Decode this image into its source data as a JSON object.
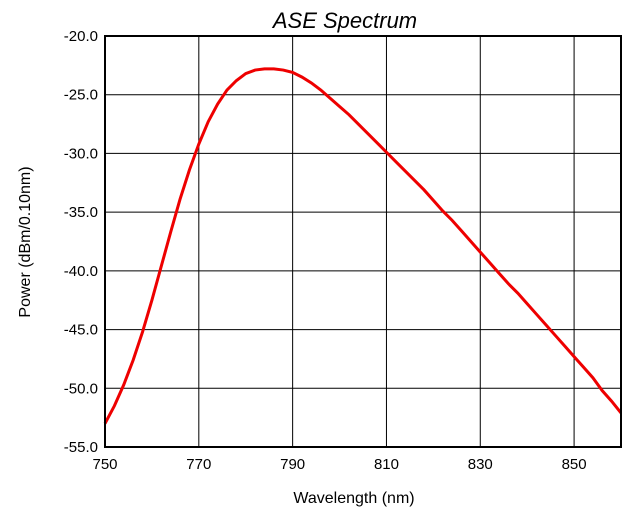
{
  "chart_data": {
    "type": "line",
    "title": "ASE Spectrum",
    "xlabel": "Wavelength (nm)",
    "ylabel": "Power (dBm/0.10nm)",
    "xlim": [
      750,
      860
    ],
    "ylim": [
      -55.0,
      -20.0
    ],
    "x_ticks": [
      750,
      770,
      790,
      810,
      830,
      850
    ],
    "x_tick_labels": [
      "750",
      "770",
      "790",
      "810",
      "830",
      "850"
    ],
    "y_ticks": [
      -20.0,
      -25.0,
      -30.0,
      -35.0,
      -40.0,
      -45.0,
      -50.0,
      -55.0
    ],
    "y_tick_labels": [
      "-20.0",
      "-25.0",
      "-30.0",
      "-35.0",
      "-40.0",
      "-45.0",
      "-50.0",
      "-55.0"
    ],
    "grid": true,
    "series": [
      {
        "color": "#ee0000",
        "x": [
          750,
          752,
          754,
          756,
          758,
          760,
          762,
          764,
          766,
          768,
          770,
          772,
          774,
          776,
          778,
          780,
          782,
          784,
          786,
          788,
          790,
          792,
          794,
          796,
          798,
          800,
          802,
          804,
          806,
          808,
          810,
          812,
          814,
          816,
          818,
          820,
          822,
          824,
          826,
          828,
          830,
          832,
          834,
          836,
          838,
          840,
          842,
          844,
          846,
          848,
          850,
          852,
          854,
          856,
          858,
          860
        ],
        "y": [
          -53.0,
          -51.5,
          -49.7,
          -47.6,
          -45.2,
          -42.5,
          -39.6,
          -36.7,
          -33.9,
          -31.4,
          -29.2,
          -27.3,
          -25.8,
          -24.6,
          -23.8,
          -23.2,
          -22.9,
          -22.8,
          -22.8,
          -22.9,
          -23.1,
          -23.5,
          -24.0,
          -24.6,
          -25.3,
          -26.0,
          -26.7,
          -27.5,
          -28.3,
          -29.1,
          -29.9,
          -30.7,
          -31.5,
          -32.3,
          -33.1,
          -34.0,
          -34.9,
          -35.7,
          -36.6,
          -37.5,
          -38.4,
          -39.3,
          -40.2,
          -41.1,
          -41.9,
          -42.8,
          -43.7,
          -44.6,
          -45.5,
          -46.4,
          -47.3,
          -48.2,
          -49.1,
          -50.2,
          -51.1,
          -52.1
        ]
      }
    ]
  }
}
